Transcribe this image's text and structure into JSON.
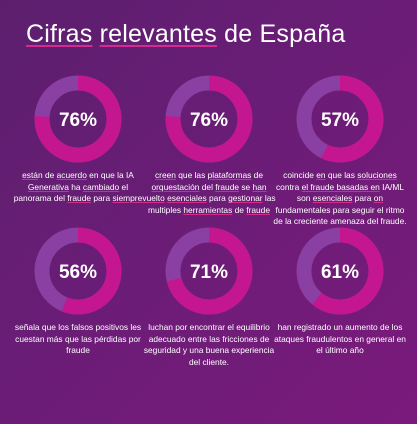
{
  "title": {
    "part1": "Cifras",
    "part2": "relevantes",
    "part3": " de España"
  },
  "colors": {
    "ring_fill": "#c4168f",
    "ring_track": "#8a3fa2",
    "accent": "#d62b8c"
  },
  "chart_data": {
    "type": "donut-grid",
    "title": "Cifras relevantes de España",
    "items": [
      {
        "label": "76%",
        "value": 76,
        "description": [
          "está",
          "n de ",
          "acuerdo",
          " en que la IA ",
          "Generativa",
          " ha ",
          "cambiado",
          " el panorama del ",
          "fraude",
          " para ",
          "siempre"
        ]
      },
      {
        "label": "76%",
        "value": 76,
        "description": [
          "creen",
          " que las ",
          "plataformas",
          " de ",
          "orquestación",
          " del ",
          "fraude",
          " se ",
          "han vuelto",
          " ",
          "esenciales",
          " para ",
          "gestionar",
          " las multiples ",
          "herramientas",
          " de ",
          "fraude"
        ]
      },
      {
        "label": "57%",
        "value": 57,
        "description": [
          "coincide ",
          "en",
          " que las ",
          "soluciones",
          " contra ",
          "el fraude basadas en",
          " IA/ML son ",
          "esenciales",
          " para ",
          "on",
          " fundamentales para seguir el ritmo de la creciente amenaza del fraude."
        ]
      },
      {
        "label": "56%",
        "value": 56,
        "description": [
          "señala que los falsos positivos les cuestan más que las pérdidas por fraude"
        ]
      },
      {
        "label": "71%",
        "value": 71,
        "description": [
          "luchan por encontrar el equilibrio adecuado entre las fricciones de seguridad y una buena experiencia del cliente."
        ]
      },
      {
        "label": "61%",
        "value": 61,
        "description": [
          "han registrado un aumento de los ataques fraudulentos en general en el último año"
        ]
      }
    ]
  }
}
